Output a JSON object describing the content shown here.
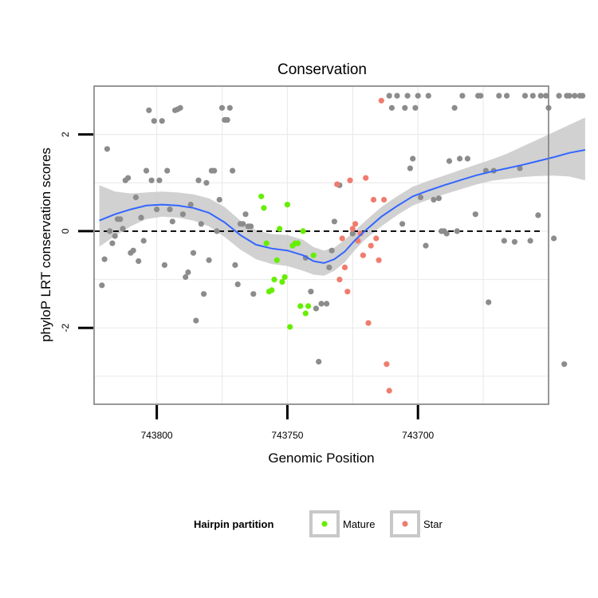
{
  "chart_data": {
    "type": "scatter",
    "title": "Conservation",
    "xlabel": "Genomic Position",
    "ylabel": "phyloP LRT conservation scores",
    "x_reversed": true,
    "xlim": [
      743824,
      743650
    ],
    "ylim": [
      -3.58,
      3.0
    ],
    "x_ticks": [
      743800,
      743750,
      743700
    ],
    "x_tick_labels": [
      "743800",
      "743750",
      "743700"
    ],
    "y_ticks": [
      -2,
      0,
      2
    ],
    "y_tick_labels": [
      "-2",
      "0",
      "2"
    ],
    "reference_line": {
      "y": 0,
      "style": "dashed"
    },
    "colors": {
      "background": "#ffffff",
      "grid": "#ebebeb",
      "panel_border": "#7f7f7f",
      "default_points": "#8c8c8c",
      "mature": "#66ee00",
      "star": "#f07c6e",
      "smooth_line": "#3366ff",
      "confidence_band": "#c9c9c9",
      "reference_line": "#000000"
    },
    "series": [
      {
        "name": "Other",
        "in_legend": false,
        "points": [
          [
            743821,
            -1.12
          ],
          [
            743820,
            -0.58
          ],
          [
            743819,
            1.7
          ],
          [
            743818,
            0.0
          ],
          [
            743817,
            -0.25
          ],
          [
            743816,
            -0.1
          ],
          [
            743815,
            0.25
          ],
          [
            743814,
            0.25
          ],
          [
            743813,
            0.05
          ],
          [
            743812,
            1.05
          ],
          [
            743811,
            1.1
          ],
          [
            743810,
            -0.45
          ],
          [
            743809,
            -0.4
          ],
          [
            743808,
            0.7
          ],
          [
            743807,
            -0.62
          ],
          [
            743806,
            0.28
          ],
          [
            743805,
            -0.2
          ],
          [
            743804,
            1.25
          ],
          [
            743803,
            2.5
          ],
          [
            743802,
            1.05
          ],
          [
            743801,
            2.28
          ],
          [
            743800,
            0.45
          ],
          [
            743799,
            1.05
          ],
          [
            743798,
            2.28
          ],
          [
            743797,
            -0.7
          ],
          [
            743796,
            1.25
          ],
          [
            743795,
            0.45
          ],
          [
            743794,
            0.2
          ],
          [
            743793,
            2.5
          ],
          [
            743792,
            2.52
          ],
          [
            743791,
            2.55
          ],
          [
            743790,
            0.35
          ],
          [
            743789,
            -0.95
          ],
          [
            743788,
            -0.85
          ],
          [
            743787,
            0.55
          ],
          [
            743786,
            -0.45
          ],
          [
            743785,
            -1.85
          ],
          [
            743784,
            1.05
          ],
          [
            743783,
            0.15
          ],
          [
            743782,
            -1.3
          ],
          [
            743781,
            1.0
          ],
          [
            743780,
            -0.6
          ],
          [
            743779,
            1.25
          ],
          [
            743778,
            1.25
          ],
          [
            743777,
            0.0
          ],
          [
            743776,
            0.65
          ],
          [
            743775,
            2.55
          ],
          [
            743774,
            2.3
          ],
          [
            743773,
            2.3
          ],
          [
            743772,
            2.55
          ],
          [
            743771,
            1.25
          ],
          [
            743770,
            -0.7
          ],
          [
            743769,
            -1.1
          ],
          [
            743768,
            0.15
          ],
          [
            743767,
            0.15
          ],
          [
            743766,
            0.35
          ],
          [
            743765,
            0.1
          ],
          [
            743764,
            0.1
          ],
          [
            743763,
            -1.3
          ],
          [
            743743,
            -0.55
          ],
          [
            743741,
            -1.25
          ],
          [
            743739,
            -1.6
          ],
          [
            743738,
            -2.7
          ],
          [
            743737,
            -1.5
          ],
          [
            743735,
            -1.5
          ],
          [
            743734,
            -0.75
          ],
          [
            743733,
            -0.4
          ],
          [
            743732,
            0.2
          ],
          [
            743730,
            0.95
          ],
          [
            743725,
            -0.05
          ],
          [
            743711,
            2.8
          ],
          [
            743710,
            2.55
          ],
          [
            743708,
            2.8
          ],
          [
            743706,
            0.15
          ],
          [
            743705,
            2.55
          ],
          [
            743704,
            2.8
          ],
          [
            743703,
            1.3
          ],
          [
            743702,
            1.5
          ],
          [
            743701,
            2.55
          ],
          [
            743700,
            2.8
          ],
          [
            743699,
            0.7
          ],
          [
            743697,
            -0.3
          ],
          [
            743696,
            2.8
          ],
          [
            743694,
            0.65
          ],
          [
            743692,
            0.68
          ],
          [
            743691,
            0.0
          ],
          [
            743690,
            0.0
          ],
          [
            743689,
            -0.05
          ],
          [
            743688,
            1.45
          ],
          [
            743686,
            2.55
          ],
          [
            743685,
            0.0
          ],
          [
            743684,
            1.5
          ],
          [
            743683,
            2.8
          ],
          [
            743681,
            1.5
          ],
          [
            743678,
            0.35
          ],
          [
            743677,
            2.8
          ],
          [
            743676,
            2.8
          ],
          [
            743674,
            1.25
          ],
          [
            743673,
            -1.47
          ],
          [
            743671,
            1.25
          ],
          [
            743669,
            2.8
          ],
          [
            743667,
            -0.2
          ],
          [
            743666,
            2.8
          ],
          [
            743663,
            -0.22
          ],
          [
            743661,
            1.3
          ],
          [
            743659,
            2.8
          ],
          [
            743657,
            -0.2
          ],
          [
            743656,
            2.8
          ],
          [
            743654,
            0.33
          ],
          [
            743653,
            2.8
          ],
          [
            743651,
            2.8
          ],
          [
            743650,
            2.55
          ],
          [
            743648,
            -0.15
          ],
          [
            743646,
            2.8
          ],
          [
            743644,
            -2.75
          ],
          [
            743643,
            2.8
          ],
          [
            743642,
            2.8
          ],
          [
            743640,
            2.8
          ],
          [
            743638,
            2.8
          ],
          [
            743637,
            2.8
          ]
        ]
      },
      {
        "name": "Mature",
        "in_legend": true,
        "points": [
          [
            743760,
            0.72
          ],
          [
            743759,
            0.48
          ],
          [
            743758,
            -0.25
          ],
          [
            743757,
            -1.25
          ],
          [
            743756,
            -1.22
          ],
          [
            743755,
            -1.0
          ],
          [
            743754,
            -0.6
          ],
          [
            743753,
            0.05
          ],
          [
            743752,
            -1.05
          ],
          [
            743751,
            -0.95
          ],
          [
            743750,
            0.55
          ],
          [
            743749,
            -1.98
          ],
          [
            743748,
            -0.3
          ],
          [
            743747,
            -0.25
          ],
          [
            743746,
            -0.25
          ],
          [
            743745,
            -1.55
          ],
          [
            743744,
            0.0
          ],
          [
            743743,
            -1.7
          ],
          [
            743742,
            -1.55
          ],
          [
            743740,
            -0.5
          ]
        ]
      },
      {
        "name": "Star",
        "in_legend": true,
        "points": [
          [
            743731,
            0.97
          ],
          [
            743730,
            -1.0
          ],
          [
            743729,
            -0.15
          ],
          [
            743728,
            -0.75
          ],
          [
            743727,
            -1.25
          ],
          [
            743726,
            1.05
          ],
          [
            743725,
            0.05
          ],
          [
            743724,
            0.15
          ],
          [
            743723,
            -0.2
          ],
          [
            743722,
            -0.05
          ],
          [
            743721,
            -0.5
          ],
          [
            743720,
            1.1
          ],
          [
            743719,
            -1.9
          ],
          [
            743718,
            -0.3
          ],
          [
            743717,
            0.65
          ],
          [
            743716,
            -0.15
          ],
          [
            743715,
            -0.6
          ],
          [
            743714,
            2.7
          ],
          [
            743713,
            0.65
          ],
          [
            743712,
            -2.75
          ],
          [
            743711,
            -3.3
          ]
        ]
      }
    ],
    "smooth": {
      "method": "loess",
      "x": [
        743822,
        743816,
        743810,
        743804,
        743798,
        743792,
        743786,
        743780,
        743774,
        743768,
        743762,
        743756,
        743750,
        743744,
        743740,
        743736,
        743732,
        743728,
        743724,
        743720,
        743714,
        743708,
        743702,
        743696,
        743690,
        743684,
        743678,
        743672,
        743666,
        743660,
        743654,
        743648,
        743642,
        743636
      ],
      "y": [
        0.22,
        0.35,
        0.45,
        0.53,
        0.55,
        0.53,
        0.48,
        0.38,
        0.18,
        -0.08,
        -0.28,
        -0.36,
        -0.4,
        -0.5,
        -0.62,
        -0.66,
        -0.58,
        -0.42,
        -0.18,
        0.02,
        0.3,
        0.52,
        0.72,
        0.84,
        0.95,
        1.05,
        1.15,
        1.23,
        1.3,
        1.37,
        1.45,
        1.53,
        1.62,
        1.68
      ],
      "lower": [
        -0.32,
        -0.1,
        0.1,
        0.25,
        0.3,
        0.28,
        0.22,
        0.1,
        -0.12,
        -0.38,
        -0.58,
        -0.68,
        -0.72,
        -0.82,
        -0.9,
        -0.92,
        -0.82,
        -0.64,
        -0.38,
        -0.16,
        0.1,
        0.33,
        0.53,
        0.65,
        0.76,
        0.86,
        0.96,
        1.04,
        1.08,
        1.12,
        1.14,
        1.15,
        1.13,
        1.05
      ],
      "upper": [
        0.95,
        0.82,
        0.78,
        0.8,
        0.82,
        0.8,
        0.76,
        0.68,
        0.5,
        0.22,
        0.02,
        -0.06,
        -0.08,
        -0.18,
        -0.33,
        -0.4,
        -0.34,
        -0.18,
        0.02,
        0.22,
        0.5,
        0.72,
        0.92,
        1.04,
        1.15,
        1.26,
        1.37,
        1.48,
        1.6,
        1.75,
        1.9,
        2.05,
        2.2,
        2.35
      ]
    },
    "legend": {
      "title": "Hairpin partition",
      "position": "bottom",
      "entries": [
        "Mature",
        "Star"
      ]
    }
  }
}
